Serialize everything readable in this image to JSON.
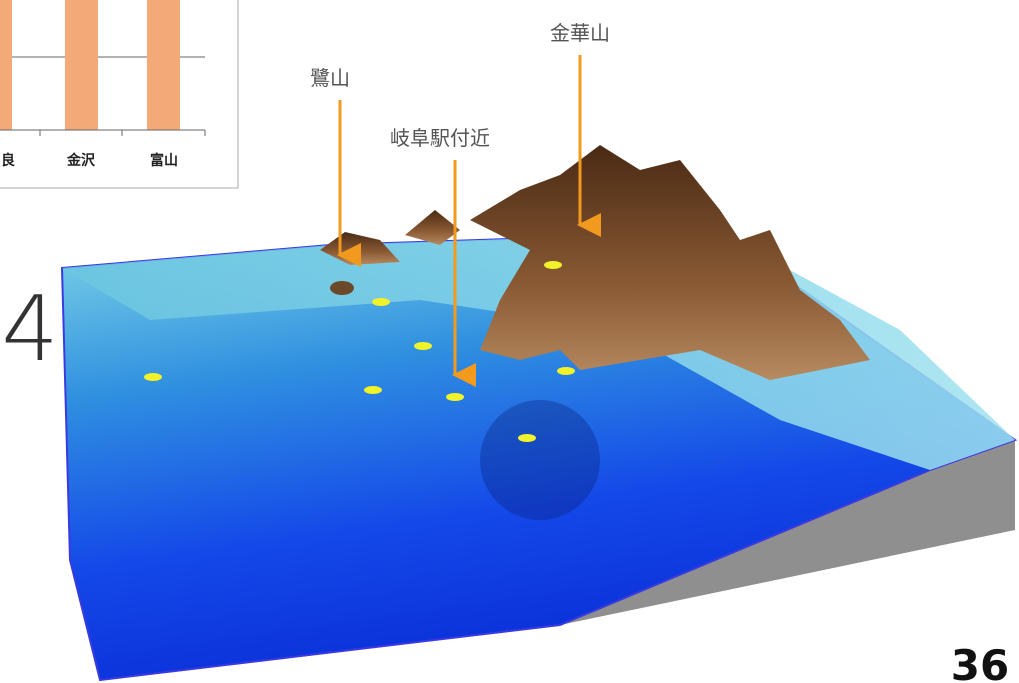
{
  "inset_chart": {
    "categories": [
      "良",
      "金沢",
      "富山"
    ]
  },
  "labels": {
    "kinkazan": "金華山",
    "sagiyama": "鷺山",
    "gifu_station": "岐阜駅付近"
  },
  "side_mark": "4",
  "page_number": "36"
}
